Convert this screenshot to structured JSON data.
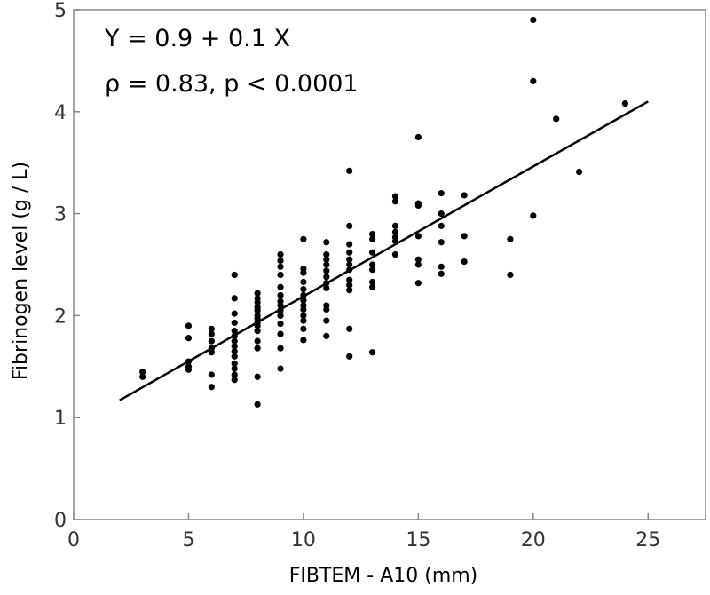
{
  "chart_data": {
    "type": "scatter",
    "xlabel": "FIBTEM - A10 (mm)",
    "ylabel": "Fibrinogen level (g / L)",
    "xlim": [
      0,
      27.5
    ],
    "ylim": [
      0,
      5
    ],
    "x_ticks": [
      0,
      5,
      10,
      15,
      20,
      25
    ],
    "y_ticks": [
      0,
      1,
      2,
      3,
      4,
      5
    ],
    "grid": false,
    "legend": "none",
    "colors": {
      "points": "#000000",
      "line": "#000000",
      "frame": "#888888"
    },
    "annotations": [
      "Y = 0.9 + 0.1 X",
      "ρ = 0.83, p < 0.0001"
    ],
    "regression_line": {
      "x": [
        2,
        25
      ],
      "y": [
        1.17,
        4.1
      ]
    },
    "points": [
      [
        3,
        1.45
      ],
      [
        3,
        1.4
      ],
      [
        5,
        1.9
      ],
      [
        5,
        1.78
      ],
      [
        5,
        1.55
      ],
      [
        5,
        1.5
      ],
      [
        5,
        1.47
      ],
      [
        6,
        1.87
      ],
      [
        6,
        1.82
      ],
      [
        6,
        1.75
      ],
      [
        6,
        1.68
      ],
      [
        6,
        1.64
      ],
      [
        6,
        1.42
      ],
      [
        6,
        1.3
      ],
      [
        7,
        2.4
      ],
      [
        7,
        2.17
      ],
      [
        7,
        2.02
      ],
      [
        7,
        1.93
      ],
      [
        7,
        1.85
      ],
      [
        7,
        1.8
      ],
      [
        7,
        1.75
      ],
      [
        7,
        1.7
      ],
      [
        7,
        1.65
      ],
      [
        7,
        1.6
      ],
      [
        7,
        1.53
      ],
      [
        7,
        1.48
      ],
      [
        7,
        1.42
      ],
      [
        7,
        1.37
      ],
      [
        8,
        2.22
      ],
      [
        8,
        2.17
      ],
      [
        8,
        2.13
      ],
      [
        8,
        2.08
      ],
      [
        8,
        2.05
      ],
      [
        8,
        2.0
      ],
      [
        8,
        1.97
      ],
      [
        8,
        1.93
      ],
      [
        8,
        1.9
      ],
      [
        8,
        1.85
      ],
      [
        8,
        1.75
      ],
      [
        8,
        1.68
      ],
      [
        8,
        1.4
      ],
      [
        8,
        1.13
      ],
      [
        9,
        2.6
      ],
      [
        9,
        2.54
      ],
      [
        9,
        2.48
      ],
      [
        9,
        2.4
      ],
      [
        9,
        2.28
      ],
      [
        9,
        2.2
      ],
      [
        9,
        2.14
      ],
      [
        9,
        2.1
      ],
      [
        9,
        2.05
      ],
      [
        9,
        2.0
      ],
      [
        9,
        1.92
      ],
      [
        9,
        1.82
      ],
      [
        9,
        1.68
      ],
      [
        9,
        1.48
      ],
      [
        10,
        2.75
      ],
      [
        10,
        2.46
      ],
      [
        10,
        2.42
      ],
      [
        10,
        2.33
      ],
      [
        10,
        2.26
      ],
      [
        10,
        2.2
      ],
      [
        10,
        2.15
      ],
      [
        10,
        2.1
      ],
      [
        10,
        2.06
      ],
      [
        10,
        2.0
      ],
      [
        10,
        1.95
      ],
      [
        10,
        1.87
      ],
      [
        10,
        1.76
      ],
      [
        11,
        2.72
      ],
      [
        11,
        2.6
      ],
      [
        11,
        2.55
      ],
      [
        11,
        2.5
      ],
      [
        11,
        2.44
      ],
      [
        11,
        2.38
      ],
      [
        11,
        2.32
      ],
      [
        11,
        2.27
      ],
      [
        11,
        2.1
      ],
      [
        11,
        2.06
      ],
      [
        11,
        1.95
      ],
      [
        11,
        1.8
      ],
      [
        12,
        3.42
      ],
      [
        12,
        2.88
      ],
      [
        12,
        2.7
      ],
      [
        12,
        2.62
      ],
      [
        12,
        2.55
      ],
      [
        12,
        2.5
      ],
      [
        12,
        2.45
      ],
      [
        12,
        2.35
      ],
      [
        12,
        2.3
      ],
      [
        12,
        2.25
      ],
      [
        12,
        1.87
      ],
      [
        12,
        1.6
      ],
      [
        13,
        2.8
      ],
      [
        13,
        2.75
      ],
      [
        13,
        2.62
      ],
      [
        13,
        2.5
      ],
      [
        13,
        2.45
      ],
      [
        13,
        2.33
      ],
      [
        13,
        2.28
      ],
      [
        13,
        1.64
      ],
      [
        14,
        3.17
      ],
      [
        14,
        3.12
      ],
      [
        14,
        2.88
      ],
      [
        14,
        2.82
      ],
      [
        14,
        2.77
      ],
      [
        14,
        2.73
      ],
      [
        14,
        2.6
      ],
      [
        15,
        3.75
      ],
      [
        15,
        3.1
      ],
      [
        15,
        3.08
      ],
      [
        15,
        2.78
      ],
      [
        15,
        2.55
      ],
      [
        15,
        2.5
      ],
      [
        15,
        2.32
      ],
      [
        16,
        3.2
      ],
      [
        16,
        3.0
      ],
      [
        16,
        2.88
      ],
      [
        16,
        2.72
      ],
      [
        16,
        2.48
      ],
      [
        16,
        2.41
      ],
      [
        17,
        3.18
      ],
      [
        17,
        2.78
      ],
      [
        17,
        2.53
      ],
      [
        19,
        2.75
      ],
      [
        19,
        2.4
      ],
      [
        20,
        4.9
      ],
      [
        20,
        4.3
      ],
      [
        20,
        2.98
      ],
      [
        21,
        3.93
      ],
      [
        22,
        3.41
      ],
      [
        24,
        4.08
      ]
    ]
  }
}
